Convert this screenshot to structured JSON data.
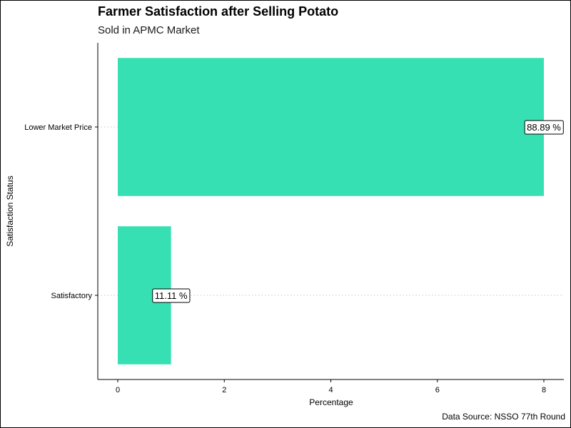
{
  "chart_data": {
    "type": "bar",
    "orientation": "horizontal",
    "title": "Farmer Satisfaction after Selling Potato",
    "subtitle": "Sold in APMC Market",
    "caption": "Data Source: NSSO 77th Round",
    "xlabel": "Percentage",
    "ylabel": "Satisfaction Status",
    "categories": [
      "Lower Market Price",
      "Satisfactory"
    ],
    "values": [
      8,
      1
    ],
    "data_labels": [
      "88.89 %",
      "11.11 %"
    ],
    "xlim": [
      0,
      8
    ],
    "x_ticks": [
      0,
      2,
      4,
      6,
      8
    ],
    "x_tick_labels": [
      "0",
      "2",
      "4",
      "6",
      "8"
    ],
    "grid": "horizontal dotted at categories",
    "legend": "none",
    "bar_color": "#36E0B2"
  }
}
